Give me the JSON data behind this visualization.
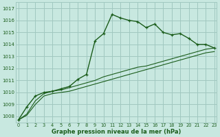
{
  "title": "Graphe pression niveau de la mer (hPa)",
  "bg_color": "#c8e8e0",
  "grid_color": "#a0c8c0",
  "line_color": "#1a5c1a",
  "ylim": [
    1007.5,
    1017.5
  ],
  "xlim": [
    -0.3,
    23.3
  ],
  "yticks": [
    1008,
    1009,
    1010,
    1011,
    1012,
    1013,
    1014,
    1015,
    1016,
    1017
  ],
  "xticks": [
    0,
    1,
    2,
    3,
    4,
    5,
    6,
    7,
    8,
    9,
    10,
    11,
    12,
    13,
    14,
    15,
    16,
    17,
    18,
    19,
    20,
    21,
    22,
    23
  ],
  "series1_x": [
    0,
    1,
    2,
    3,
    4,
    5,
    6,
    7,
    8,
    9,
    10,
    11,
    12,
    13,
    14,
    15,
    16,
    17,
    18,
    19,
    20,
    21,
    22,
    23
  ],
  "series1_y": [
    1007.7,
    1008.8,
    1009.7,
    1010.0,
    1010.1,
    1010.3,
    1010.5,
    1011.1,
    1011.5,
    1014.3,
    1014.9,
    1016.5,
    1016.2,
    1016.0,
    1015.9,
    1015.4,
    1015.7,
    1015.0,
    1014.8,
    1014.9,
    1014.5,
    1014.0,
    1014.0,
    1013.7
  ],
  "series2_x": [
    0,
    1,
    2,
    3,
    4,
    5,
    6,
    7,
    8,
    9,
    10,
    11,
    12,
    13,
    14,
    15,
    16,
    17,
    18,
    19,
    20,
    21,
    22,
    23
  ],
  "series2_y": [
    1007.7,
    1008.2,
    1009.3,
    1009.9,
    1010.1,
    1010.2,
    1010.4,
    1010.6,
    1010.8,
    1011.0,
    1011.3,
    1011.5,
    1011.7,
    1011.9,
    1012.1,
    1012.2,
    1012.4,
    1012.6,
    1012.8,
    1013.0,
    1013.2,
    1013.4,
    1013.6,
    1013.7
  ],
  "series3_x": [
    0,
    1,
    2,
    3,
    4,
    5,
    6,
    7,
    8,
    9,
    10,
    11,
    12,
    13,
    14,
    15,
    16,
    17,
    18,
    19,
    20,
    21,
    22,
    23
  ],
  "series3_y": [
    1007.7,
    1008.1,
    1009.0,
    1009.7,
    1009.9,
    1010.0,
    1010.1,
    1010.3,
    1010.5,
    1010.7,
    1010.9,
    1011.1,
    1011.3,
    1011.5,
    1011.7,
    1011.9,
    1012.1,
    1012.3,
    1012.5,
    1012.7,
    1012.9,
    1013.1,
    1013.3,
    1013.4
  ]
}
